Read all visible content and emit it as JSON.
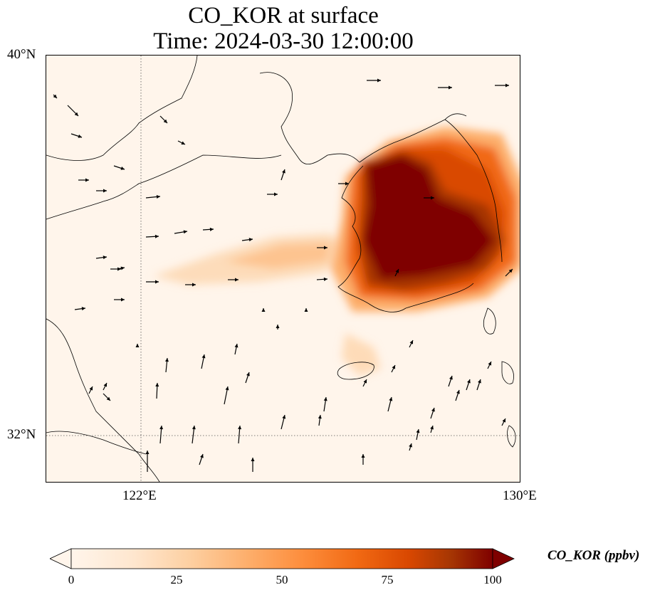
{
  "title": {
    "line1": "CO_KOR at surface",
    "line2": "Time: 2024-03-30 12:00:00"
  },
  "axes": {
    "lat_labels": [
      "40°N",
      "32°N"
    ],
    "lon_labels": [
      "122°E",
      "130°E"
    ],
    "lon_range": [
      120,
      130
    ],
    "lat_range": [
      31,
      40
    ],
    "gridlines": {
      "lon": [
        122
      ],
      "lat": [
        32
      ],
      "style": "dotted"
    }
  },
  "colorbar": {
    "label": "CO_KOR (ppbv)",
    "ticks": [
      "0",
      "25",
      "50",
      "75",
      "100"
    ],
    "range": [
      0,
      100
    ],
    "extend": "both",
    "colormap": [
      "#fff5eb",
      "#fee6ce",
      "#fdd0a2",
      "#fdae6b",
      "#fd8d3c",
      "#f16913",
      "#d94801",
      "#a63603",
      "#7f0000"
    ]
  },
  "map": {
    "variable": "CO_KOR",
    "units": "ppbv",
    "level": "surface",
    "colors": {
      "background": "#fff5eb",
      "coastline": "#000000"
    },
    "overlay": "wind vectors"
  }
}
